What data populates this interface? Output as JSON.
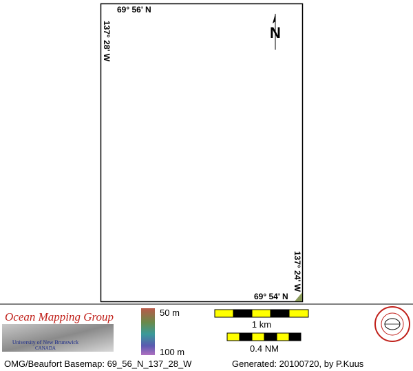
{
  "map": {
    "labels": {
      "top_left": "69° 56' N",
      "left": "137° 28' W",
      "right": "137° 24' W",
      "bottom_right": "69° 54' N"
    },
    "north_arrow": "N"
  },
  "legend": {
    "organization": "Ocean Mapping Group",
    "university": "University of New Brunswick",
    "country": "CANADA",
    "depth_min": "50 m",
    "depth_max": "100 m",
    "scale_km": "1 km",
    "scale_nm": "0.4 NM"
  },
  "footer": {
    "basemap": "OMG/Beaufort Basemap: 69_56_N_137_28_W",
    "generated": "Generated: 20100720, by P.Kuus"
  }
}
